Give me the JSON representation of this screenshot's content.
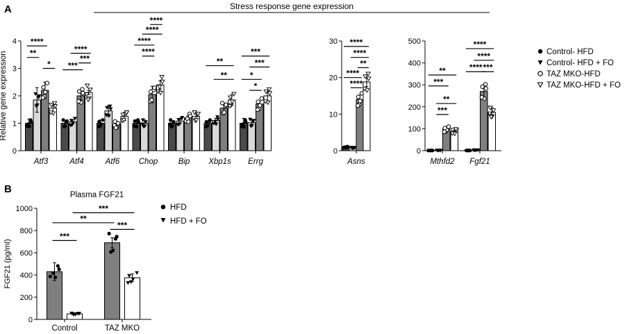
{
  "panels": [
    {
      "label": "A"
    },
    {
      "label": "B"
    }
  ],
  "panel_a_title": "Stress response gene expression",
  "legend_a": [
    {
      "label": "Control- HFD",
      "marker": "dot",
      "fill": "#4a4a4a"
    },
    {
      "label": "Control- HFD + FO",
      "marker": "tri",
      "fill": "#d9d9d9"
    },
    {
      "label": "TAZ MKO-HFD",
      "marker": "ring",
      "fill": "#7f7f7f"
    },
    {
      "label": "TAZ MKO-HFD + FO",
      "marker": "opentri",
      "fill": "#ffffff"
    }
  ],
  "legend_b": [
    {
      "label": "HFD",
      "marker": "dot"
    },
    {
      "label": "HFD + FO",
      "marker": "tri"
    }
  ],
  "colors": {
    "s1": "#4a4a4a",
    "s2": "#d9d9d9",
    "s3": "#7f7f7f",
    "s4": "#ffffff",
    "stroke": "#000000"
  },
  "chart_data": [
    {
      "type": "bar",
      "title": "",
      "ylabel": "Relative gene expression",
      "ylim": [
        0,
        4
      ],
      "yticks": [
        "0",
        "1",
        "2",
        "3",
        "4"
      ],
      "categories": [
        "Atf3",
        "Atf4",
        "Atf6",
        "Chop",
        "Bip",
        "Xbp1s",
        "Errg"
      ],
      "series": [
        {
          "name": "Control- HFD",
          "values": [
            1.0,
            1.0,
            1.0,
            1.0,
            1.0,
            1.0,
            1.0
          ]
        },
        {
          "name": "Control- HFD + FO",
          "values": [
            1.85,
            1.05,
            1.45,
            1.0,
            1.08,
            1.1,
            1.02
          ]
        },
        {
          "name": "TAZ MKO-HFD",
          "values": [
            2.2,
            2.0,
            0.95,
            2.05,
            1.2,
            1.55,
            1.7
          ]
        },
        {
          "name": "TAZ MKO-HFD + FO",
          "values": [
            1.55,
            2.12,
            1.25,
            2.4,
            1.25,
            1.85,
            2.0
          ]
        }
      ],
      "errors": [
        [
          0.15,
          0.07,
          0.12,
          0.08,
          0.07,
          0.05,
          0.18
        ],
        [
          0.45,
          0.07,
          0.2,
          0.12,
          0.08,
          0.08,
          0.12
        ],
        [
          0.3,
          0.15,
          0.12,
          0.3,
          0.07,
          0.12,
          0.1
        ],
        [
          0.18,
          0.08,
          0.15,
          0.15,
          0.1,
          0.2,
          0.18
        ]
      ],
      "significance": [
        {
          "cat": 0,
          "from": 0,
          "to": 2,
          "level": 3.82,
          "label": "****"
        },
        {
          "cat": 0,
          "from": 0,
          "to": 1,
          "level": 3.4,
          "label": "**"
        },
        {
          "cat": 0,
          "from": 2,
          "to": 3,
          "level": 3.0,
          "label": "*"
        },
        {
          "cat": 1,
          "from": 1,
          "to": 3,
          "level": 3.55,
          "label": "****"
        },
        {
          "cat": 1,
          "from": 0,
          "to": 2,
          "level": 2.95,
          "label": "***"
        },
        {
          "cat": 1,
          "from": 2,
          "to": 3,
          "level": 3.2,
          "label": "***"
        },
        {
          "cat": 3,
          "from": 2,
          "to": 3,
          "level": 4.6,
          "label": "****"
        },
        {
          "cat": 3,
          "from": 1,
          "to": 3,
          "level": 4.25,
          "label": "****"
        },
        {
          "cat": 3,
          "from": 0,
          "to": 2,
          "level": 3.85,
          "label": "****"
        },
        {
          "cat": 3,
          "from": 1,
          "to": 2,
          "level": 3.45,
          "label": "****"
        },
        {
          "cat": 5,
          "from": 0,
          "to": 3,
          "level": 3.1,
          "label": "**"
        },
        {
          "cat": 5,
          "from": 1,
          "to": 3,
          "level": 2.6,
          "label": "**"
        },
        {
          "cat": 6,
          "from": 0,
          "to": 3,
          "level": 3.45,
          "label": "***"
        },
        {
          "cat": 6,
          "from": 1,
          "to": 3,
          "level": 3.05,
          "label": "***"
        },
        {
          "cat": 6,
          "from": 0,
          "to": 2,
          "level": 2.6,
          "label": "*"
        },
        {
          "cat": 6,
          "from": 1,
          "to": 2,
          "level": 2.2,
          "label": "*"
        }
      ]
    },
    {
      "type": "bar",
      "title": "",
      "ylabel": "",
      "ylim": [
        0,
        30
      ],
      "yticks": [
        "0",
        "10",
        "20",
        "30"
      ],
      "categories": [
        "Asns"
      ],
      "series": [
        {
          "name": "Control- HFD",
          "values": [
            1.0
          ]
        },
        {
          "name": "Control- HFD + FO",
          "values": [
            0.8
          ]
        },
        {
          "name": "TAZ MKO-HFD",
          "values": [
            14.0
          ]
        },
        {
          "name": "TAZ MKO-HFD + FO",
          "values": [
            18.8
          ]
        }
      ],
      "errors": [
        [
          0.3
        ],
        [
          0.3
        ],
        [
          1.2
        ],
        [
          1.3
        ]
      ],
      "significance": [
        {
          "cat": 0,
          "from": 0,
          "to": 3,
          "level": 28.5,
          "label": "****"
        },
        {
          "cat": 0,
          "from": 1,
          "to": 3,
          "level": 25.5,
          "label": "****"
        },
        {
          "cat": 0,
          "from": 2,
          "to": 3,
          "level": 22.7,
          "label": "**"
        },
        {
          "cat": 0,
          "from": 0,
          "to": 2,
          "level": 20.0,
          "label": "****"
        },
        {
          "cat": 0,
          "from": 1,
          "to": 2,
          "level": 17.2,
          "label": "****"
        }
      ]
    },
    {
      "type": "bar",
      "title": "",
      "ylabel": "",
      "ylim": [
        0,
        500
      ],
      "yticks": [
        "0",
        "100",
        "200",
        "300",
        "400",
        "500"
      ],
      "categories": [
        "Mthfd2",
        "Fgf21"
      ],
      "series": [
        {
          "name": "Control- HFD",
          "values": [
            1,
            1
          ]
        },
        {
          "name": "Control- HFD + FO",
          "values": [
            2,
            3
          ]
        },
        {
          "name": "TAZ MKO-HFD",
          "values": [
            98,
            270
          ]
        },
        {
          "name": "TAZ MKO-HFD + FO",
          "values": [
            88,
            175
          ]
        }
      ],
      "errors": [
        [
          1,
          1
        ],
        [
          1,
          1
        ],
        [
          12,
          30
        ],
        [
          10,
          20
        ]
      ],
      "significance": [
        {
          "cat": 0,
          "from": 0,
          "to": 3,
          "level": 345,
          "label": "**"
        },
        {
          "cat": 0,
          "from": 0,
          "to": 2,
          "level": 295,
          "label": "***"
        },
        {
          "cat": 0,
          "from": 1,
          "to": 3,
          "level": 215,
          "label": "**"
        },
        {
          "cat": 0,
          "from": 1,
          "to": 2,
          "level": 165,
          "label": "***"
        },
        {
          "cat": 1,
          "from": 0,
          "to": 3,
          "level": 465,
          "label": "****"
        },
        {
          "cat": 1,
          "from": 1,
          "to": 3,
          "level": 412,
          "label": "****"
        },
        {
          "cat": 1,
          "from": 0,
          "to": 2,
          "level": 360,
          "label": "****"
        },
        {
          "cat": 1,
          "from": 2,
          "to": 3,
          "level": 360,
          "label": "***"
        }
      ]
    },
    {
      "type": "bar",
      "title": "Plasma FGF21",
      "ylabel": "FGF21 (pg/ml)",
      "ylim": [
        0,
        1000
      ],
      "yticks": [
        "0",
        "200",
        "400",
        "600",
        "800",
        "1000"
      ],
      "categories": [
        "Control",
        "TAZ MKO"
      ],
      "series": [
        {
          "name": "HFD",
          "values": [
            430,
            690
          ]
        },
        {
          "name": "HFD + FO",
          "values": [
            50,
            375
          ]
        }
      ],
      "errors": [
        [
          80,
          45
        ],
        [
          10,
          35
        ]
      ],
      "significance": [
        {
          "cat": 0,
          "from": 0,
          "to": 1,
          "level": 710,
          "label": "***"
        },
        {
          "span": [
            0,
            2
          ],
          "level": 870,
          "label": "**"
        },
        {
          "span": [
            1,
            3
          ],
          "level": 960,
          "label": "***"
        },
        {
          "cat": 1,
          "from": 0,
          "to": 1,
          "level": 810,
          "label": "***"
        }
      ]
    }
  ]
}
